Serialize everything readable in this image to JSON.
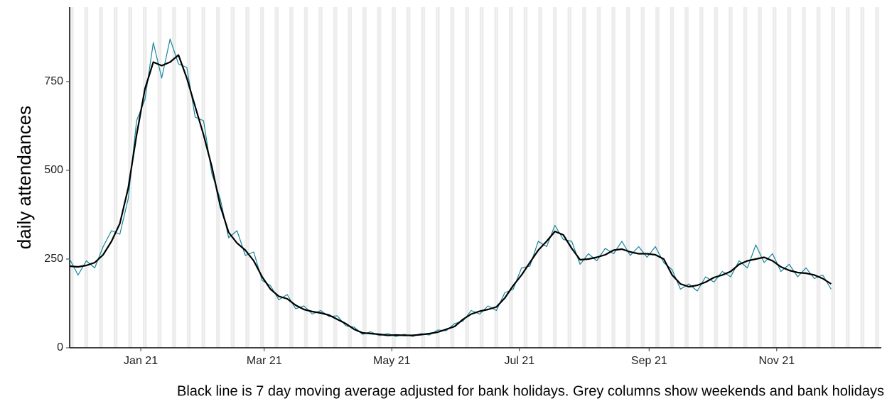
{
  "chart_data": {
    "type": "line",
    "y_label": "daily attendances",
    "caption": "Black line is 7 day moving average adjusted for bank holidays. Grey columns show weekends and bank holidays",
    "x": [
      -34,
      -30,
      -26,
      -22,
      -18,
      -14,
      -10,
      -6,
      -2,
      2,
      6,
      10,
      14,
      18,
      22,
      26,
      30,
      34,
      38,
      42,
      46,
      50,
      54,
      58,
      62,
      66,
      70,
      74,
      78,
      82,
      86,
      90,
      94,
      98,
      102,
      106,
      110,
      114,
      118,
      122,
      126,
      130,
      134,
      138,
      142,
      146,
      150,
      154,
      158,
      162,
      166,
      170,
      174,
      178,
      182,
      186,
      190,
      194,
      198,
      202,
      206,
      210,
      214,
      218,
      222,
      226,
      230,
      234,
      238,
      242,
      246,
      250,
      254,
      258,
      262,
      266,
      270,
      274,
      278,
      282,
      286,
      290,
      294,
      298,
      302,
      306,
      310,
      314,
      318,
      322,
      326,
      330
    ],
    "series": [
      {
        "color": "#17879c",
        "values": [
          250,
          205,
          245,
          225,
          285,
          330,
          320,
          420,
          640,
          700,
          860,
          760,
          870,
          800,
          790,
          650,
          640,
          490,
          420,
          310,
          330,
          260,
          270,
          190,
          175,
          135,
          150,
          110,
          118,
          95,
          105,
          88,
          90,
          62,
          58,
          38,
          45,
          34,
          40,
          32,
          38,
          32,
          40,
          36,
          50,
          48,
          68,
          75,
          105,
          95,
          118,
          105,
          155,
          165,
          225,
          230,
          300,
          285,
          345,
          305,
          300,
          235,
          265,
          245,
          280,
          265,
          300,
          260,
          285,
          255,
          285,
          240,
          220,
          165,
          180,
          160,
          200,
          185,
          215,
          200,
          245,
          225,
          290,
          240,
          265,
          215,
          235,
          200,
          225,
          195,
          205,
          165
        ]
      },
      {
        "color": "#000000",
        "values": [
          230,
          228,
          232,
          240,
          262,
          300,
          350,
          450,
          600,
          730,
          805,
          795,
          805,
          825,
          760,
          680,
          600,
          510,
          400,
          325,
          295,
          275,
          245,
          200,
          165,
          145,
          138,
          120,
          108,
          102,
          98,
          92,
          80,
          68,
          52,
          42,
          40,
          38,
          35,
          36,
          35,
          35,
          37,
          40,
          44,
          52,
          60,
          80,
          95,
          103,
          108,
          115,
          140,
          175,
          205,
          240,
          275,
          300,
          328,
          318,
          280,
          248,
          250,
          255,
          262,
          275,
          278,
          270,
          265,
          265,
          262,
          250,
          205,
          180,
          172,
          176,
          185,
          198,
          205,
          215,
          235,
          245,
          250,
          255,
          245,
          228,
          218,
          212,
          210,
          205,
          195,
          180
        ]
      }
    ],
    "xlim": [
      -34,
      354
    ],
    "xticks": [
      {
        "value": 0,
        "label": "Jan 21"
      },
      {
        "value": 59,
        "label": "Mar 21"
      },
      {
        "value": 120,
        "label": "May 21"
      },
      {
        "value": 181,
        "label": "Jul 21"
      },
      {
        "value": 243,
        "label": "Sep 21"
      },
      {
        "value": 304,
        "label": "Nov 21"
      }
    ],
    "ylim": [
      0,
      960
    ],
    "yticks": [
      0,
      250,
      500,
      750
    ]
  }
}
